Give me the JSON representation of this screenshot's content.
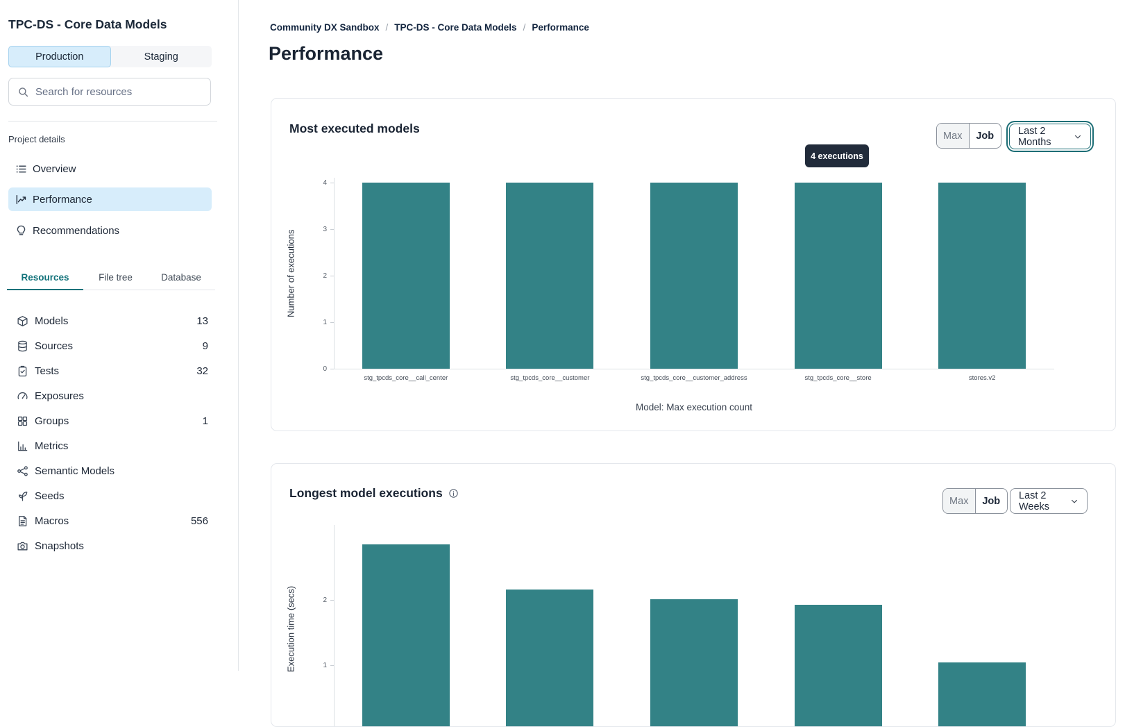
{
  "sidebar": {
    "project_title": "TPC-DS - Core Data Models",
    "environment_tabs": {
      "options": [
        "Production",
        "Staging"
      ],
      "selected": "Production"
    },
    "search_placeholder": "Search for resources",
    "project_details_label": "Project details",
    "nav_items": [
      {
        "label": "Overview",
        "icon": "list-icon",
        "selected": false
      },
      {
        "label": "Performance",
        "icon": "line-chart-icon",
        "selected": true
      },
      {
        "label": "Recommendations",
        "icon": "lightbulb-icon",
        "selected": false
      }
    ],
    "resource_tabs": {
      "options": [
        "Resources",
        "File tree",
        "Database"
      ],
      "selected": "Resources"
    },
    "resources": [
      {
        "label": "Models",
        "count": "13",
        "icon": "cube-icon"
      },
      {
        "label": "Sources",
        "count": "9",
        "icon": "database-icon"
      },
      {
        "label": "Tests",
        "count": "32",
        "icon": "clipboard-check-icon"
      },
      {
        "label": "Exposures",
        "count": "",
        "icon": "gauge-icon"
      },
      {
        "label": "Groups",
        "count": "1",
        "icon": "grid-icon"
      },
      {
        "label": "Metrics",
        "count": "",
        "icon": "bar-chart-icon"
      },
      {
        "label": "Semantic Models",
        "count": "",
        "icon": "network-icon"
      },
      {
        "label": "Seeds",
        "count": "",
        "icon": "seedling-icon"
      },
      {
        "label": "Macros",
        "count": "556",
        "icon": "document-icon"
      },
      {
        "label": "Snapshots",
        "count": "",
        "icon": "camera-icon"
      }
    ]
  },
  "main": {
    "breadcrumb_items": [
      "Community DX Sandbox",
      "TPC-DS - Core Data Models",
      "Performance"
    ],
    "breadcrumb_separator": "/",
    "page_title": "Performance",
    "card1": {
      "toggle_options": [
        "Max",
        "Job"
      ],
      "toggle_selected": "Job",
      "range_selected": "Last 2 Months"
    },
    "card2": {
      "toggle_options": [
        "Max",
        "Job"
      ],
      "toggle_selected": "Job",
      "range_selected": "Last 2 Weeks"
    }
  },
  "chart_data": [
    {
      "type": "bar",
      "title": "Most executed models",
      "categories": [
        "stg_tpcds_core__call_center",
        "stg_tpcds_core__customer",
        "stg_tpcds_core__customer_address",
        "stg_tpcds_core__store",
        "stores.v2"
      ],
      "values": [
        4,
        4,
        4,
        4,
        4
      ],
      "xlabel": "Model: Max execution count",
      "ylabel": "Number of executions",
      "ylim": [
        0,
        4
      ],
      "yticks": [
        0,
        1,
        2,
        3,
        4
      ],
      "grid": false,
      "bar_color": "#338286",
      "tooltip": "4 executions"
    },
    {
      "type": "bar",
      "title": "Longest model executions",
      "categories": [],
      "values": [
        2.85,
        2.16,
        2.01,
        1.93,
        1.04
      ],
      "xlabel": "",
      "ylabel": "Execution time (secs)",
      "yticks": [
        1,
        2
      ],
      "grid": false,
      "bar_color": "#338286",
      "note": "chart truncated at bottom of viewport; category labels not visible"
    }
  ],
  "colors": {
    "bar_teal": "#338286",
    "selected_blue_bg": "#d7edfb",
    "tab_teal": "#12727a",
    "tooltip_bg": "#212b3a",
    "focus_ring_teal": "#1d6e76"
  }
}
